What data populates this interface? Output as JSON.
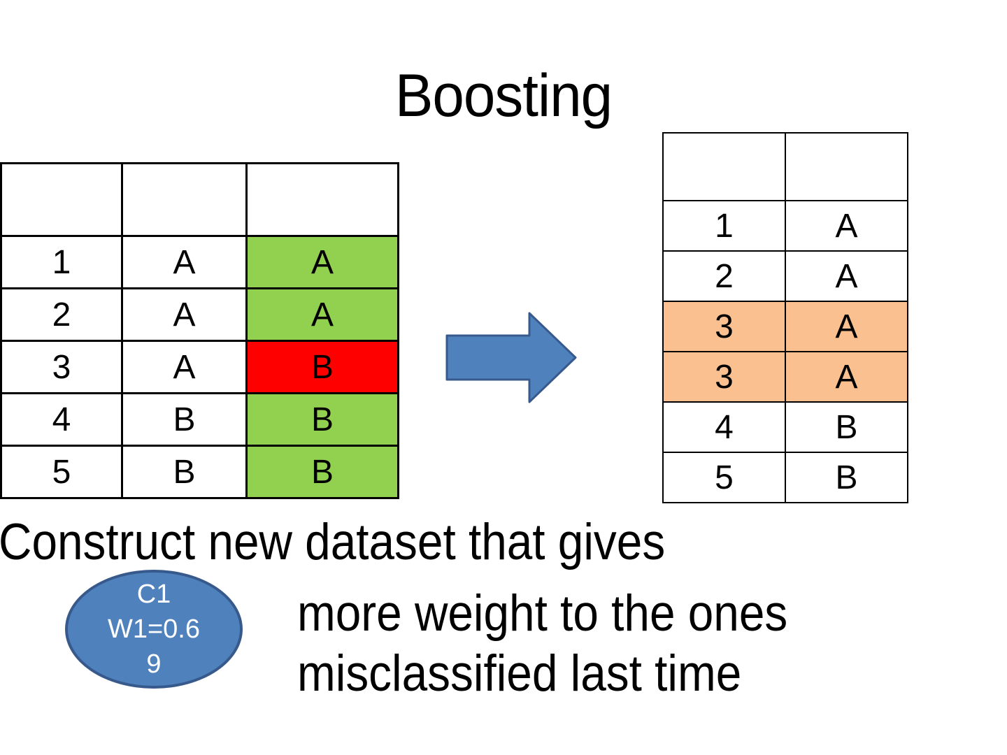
{
  "title": "Boosting",
  "left_table": {
    "header": [
      "",
      "",
      ""
    ],
    "rows": [
      {
        "cells": [
          "1",
          "A",
          "A"
        ],
        "result": "correct"
      },
      {
        "cells": [
          "2",
          "A",
          "A"
        ],
        "result": "correct"
      },
      {
        "cells": [
          "3",
          "A",
          "B"
        ],
        "result": "incorrect"
      },
      {
        "cells": [
          "4",
          "B",
          "B"
        ],
        "result": "correct"
      },
      {
        "cells": [
          "5",
          "B",
          "B"
        ],
        "result": "correct"
      }
    ]
  },
  "right_table": {
    "header": [
      "",
      ""
    ],
    "rows": [
      {
        "cells": [
          "1",
          "A"
        ],
        "highlight": false
      },
      {
        "cells": [
          "2",
          "A"
        ],
        "highlight": false
      },
      {
        "cells": [
          "3",
          "A"
        ],
        "highlight": true
      },
      {
        "cells": [
          "3",
          "A"
        ],
        "highlight": true
      },
      {
        "cells": [
          "4",
          "B"
        ],
        "highlight": false
      },
      {
        "cells": [
          "5",
          "B"
        ],
        "highlight": false
      }
    ]
  },
  "ellipse": {
    "lines": [
      "C1",
      "W1=0.6",
      "9"
    ]
  },
  "caption": {
    "line1": "Construct new dataset that gives",
    "line2": "more weight to the ones",
    "line3": "misclassified last time"
  },
  "colors": {
    "correct": "#92D050",
    "incorrect": "#FF0000",
    "highlight": "#FAC090",
    "shape_fill": "#4F81BD",
    "shape_border": "#37598C"
  }
}
